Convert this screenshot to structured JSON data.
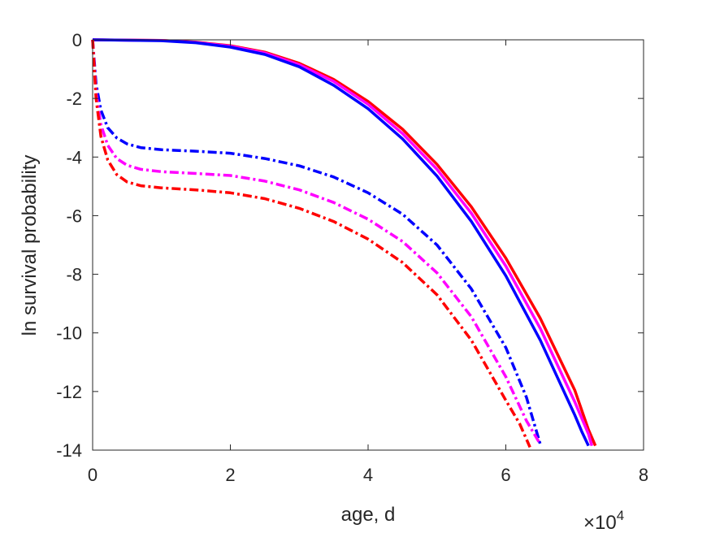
{
  "chart_data": {
    "type": "line",
    "xlabel": "age, d",
    "ylabel": "ln survival probability",
    "x_multiplier_label": "×10",
    "x_multiplier_exponent": "4",
    "xlim": [
      0,
      8
    ],
    "ylim": [
      -14,
      0
    ],
    "x_ticks": [
      0,
      2,
      4,
      6,
      8
    ],
    "y_ticks": [
      0,
      -2,
      -4,
      -6,
      -8,
      -10,
      -12,
      -14
    ],
    "x_tick_labels": [
      "0",
      "2",
      "4",
      "6",
      "8"
    ],
    "y_tick_labels": [
      "0",
      "-2",
      "-4",
      "-6",
      "-8",
      "-10",
      "-12",
      "-14"
    ],
    "x_units_note": "x values in units of 10^4 days",
    "grid": false,
    "legend": "none",
    "series": [
      {
        "color": "#ff0000",
        "style": "solid",
        "x": [
          0,
          1,
          1.5,
          2,
          2.5,
          3,
          3.5,
          4,
          4.5,
          5,
          5.5,
          6,
          6.5,
          7,
          7.2,
          7.3
        ],
        "y": [
          0,
          -0.02,
          -0.08,
          -0.2,
          -0.42,
          -0.8,
          -1.35,
          -2.1,
          -3.05,
          -4.25,
          -5.7,
          -7.45,
          -9.5,
          -11.95,
          -13.3,
          -13.85
        ]
      },
      {
        "color": "#ff00ff",
        "style": "solid",
        "x": [
          0,
          1,
          1.5,
          2,
          2.5,
          3,
          3.5,
          4,
          4.5,
          5,
          5.5,
          6,
          6.5,
          7,
          7.2,
          7.25
        ],
        "y": [
          0,
          -0.02,
          -0.09,
          -0.22,
          -0.45,
          -0.85,
          -1.42,
          -2.2,
          -3.2,
          -4.42,
          -5.92,
          -7.72,
          -9.85,
          -12.35,
          -13.45,
          -13.85
        ]
      },
      {
        "color": "#0000ff",
        "style": "solid",
        "x": [
          0,
          1,
          1.5,
          2,
          2.5,
          3,
          3.5,
          4,
          4.5,
          5,
          5.5,
          6,
          6.5,
          7,
          7.1,
          7.2
        ],
        "y": [
          0,
          -0.03,
          -0.1,
          -0.25,
          -0.5,
          -0.92,
          -1.55,
          -2.35,
          -3.38,
          -4.65,
          -6.2,
          -8.05,
          -10.25,
          -12.8,
          -13.35,
          -13.85
        ]
      },
      {
        "color": "#0000ff",
        "style": "dashdot",
        "x": [
          0,
          0.05,
          0.12,
          0.22,
          0.35,
          0.5,
          0.7,
          1,
          1.5,
          2,
          2.5,
          3,
          3.5,
          4,
          4.5,
          5,
          5.5,
          6,
          6.3,
          6.5
        ],
        "y": [
          0,
          -1.5,
          -2.4,
          -3.0,
          -3.35,
          -3.55,
          -3.68,
          -3.75,
          -3.8,
          -3.87,
          -4.05,
          -4.3,
          -4.68,
          -5.22,
          -5.95,
          -7.0,
          -8.5,
          -10.5,
          -12.2,
          -13.8
        ]
      },
      {
        "color": "#ff00ff",
        "style": "dashdot",
        "x": [
          0,
          0.05,
          0.12,
          0.22,
          0.35,
          0.5,
          0.7,
          1,
          1.5,
          2,
          2.5,
          3,
          3.5,
          4,
          4.5,
          5,
          5.5,
          6,
          6.3,
          6.5
        ],
        "y": [
          0,
          -1.8,
          -2.9,
          -3.6,
          -4.05,
          -4.28,
          -4.42,
          -4.5,
          -4.56,
          -4.63,
          -4.82,
          -5.12,
          -5.55,
          -6.12,
          -6.88,
          -7.95,
          -9.45,
          -11.5,
          -13.0,
          -13.8
        ]
      },
      {
        "color": "#ff0000",
        "style": "dashdot",
        "x": [
          0,
          0.05,
          0.12,
          0.22,
          0.35,
          0.5,
          0.7,
          1,
          1.5,
          2,
          2.5,
          3,
          3.5,
          4,
          4.5,
          5,
          5.5,
          6,
          6.2,
          6.35
        ],
        "y": [
          0,
          -2.0,
          -3.3,
          -4.1,
          -4.6,
          -4.85,
          -4.98,
          -5.05,
          -5.12,
          -5.22,
          -5.42,
          -5.75,
          -6.2,
          -6.8,
          -7.6,
          -8.7,
          -10.25,
          -12.3,
          -13.1,
          -13.9
        ]
      }
    ]
  }
}
